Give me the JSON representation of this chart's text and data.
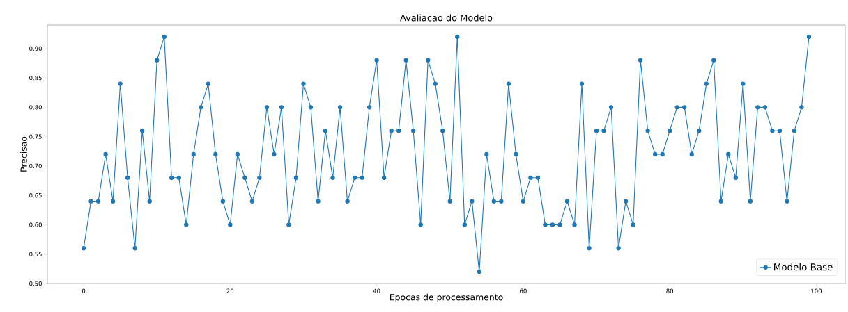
{
  "chart_data": {
    "type": "line",
    "title": "Avaliacao do Modelo",
    "xlabel": "Epocas de processamento",
    "ylabel": "Precisao",
    "x": [
      0,
      1,
      2,
      3,
      4,
      5,
      6,
      7,
      8,
      9,
      10,
      11,
      12,
      13,
      14,
      15,
      16,
      17,
      18,
      19,
      20,
      21,
      22,
      23,
      24,
      25,
      26,
      27,
      28,
      29,
      30,
      31,
      32,
      33,
      34,
      35,
      36,
      37,
      38,
      39,
      40,
      41,
      42,
      43,
      44,
      45,
      46,
      47,
      48,
      49,
      50,
      51,
      52,
      53,
      54,
      55,
      56,
      57,
      58,
      59,
      60,
      61,
      62,
      63,
      64,
      65,
      66,
      67,
      68,
      69,
      70,
      71,
      72,
      73,
      74,
      75,
      76,
      77,
      78,
      79,
      80,
      81,
      82,
      83,
      84,
      85,
      86,
      87,
      88,
      89,
      90,
      91,
      92,
      93,
      94,
      95,
      96,
      97,
      98,
      99
    ],
    "series": [
      {
        "name": "Modelo Base",
        "color": "#1f77b4",
        "values": [
          0.56,
          0.64,
          0.64,
          0.72,
          0.64,
          0.84,
          0.68,
          0.56,
          0.76,
          0.64,
          0.88,
          0.92,
          0.68,
          0.68,
          0.6,
          0.72,
          0.8,
          0.84,
          0.72,
          0.64,
          0.6,
          0.72,
          0.68,
          0.64,
          0.68,
          0.8,
          0.72,
          0.8,
          0.6,
          0.68,
          0.84,
          0.8,
          0.64,
          0.76,
          0.68,
          0.8,
          0.64,
          0.68,
          0.68,
          0.8,
          0.88,
          0.68,
          0.76,
          0.76,
          0.88,
          0.76,
          0.6,
          0.88,
          0.84,
          0.76,
          0.64,
          0.92,
          0.6,
          0.64,
          0.52,
          0.72,
          0.64,
          0.64,
          0.84,
          0.72,
          0.64,
          0.68,
          0.68,
          0.6,
          0.6,
          0.6,
          0.64,
          0.6,
          0.84,
          0.56,
          0.76,
          0.76,
          0.8,
          0.56,
          0.64,
          0.6,
          0.88,
          0.76,
          0.72,
          0.72,
          0.76,
          0.8,
          0.8,
          0.72,
          0.76,
          0.84,
          0.88,
          0.64,
          0.72,
          0.68,
          0.84,
          0.64,
          0.8,
          0.8,
          0.76,
          0.76,
          0.64,
          0.76,
          0.8,
          0.92
        ]
      }
    ],
    "xlim": [
      -4.95,
      103.95
    ],
    "ylim": [
      0.5,
      0.94
    ],
    "xticks": [
      0,
      20,
      40,
      60,
      80,
      100
    ],
    "yticks": [
      {
        "value": 0.5,
        "label": "0.50"
      },
      {
        "value": 0.55,
        "label": "0.55"
      },
      {
        "value": 0.6,
        "label": "0.60"
      },
      {
        "value": 0.65,
        "label": "0.65"
      },
      {
        "value": 0.7,
        "label": "0.70"
      },
      {
        "value": 0.75,
        "label": "0.75"
      },
      {
        "value": 0.8,
        "label": "0.80"
      },
      {
        "value": 0.85,
        "label": "0.85"
      },
      {
        "value": 0.9,
        "label": "0.90"
      }
    ],
    "grid": false,
    "legend": "bottom right",
    "marker": "circle",
    "line_style": "solid"
  }
}
